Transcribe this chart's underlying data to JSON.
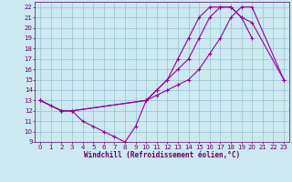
{
  "xlabel": "Windchill (Refroidissement éolien,°C)",
  "bg_color": "#cce8f0",
  "line_color": "#990099",
  "xlim": [
    -0.5,
    23.5
  ],
  "ylim": [
    9,
    22.5
  ],
  "xticks": [
    0,
    1,
    2,
    3,
    4,
    5,
    6,
    7,
    8,
    9,
    10,
    11,
    12,
    13,
    14,
    15,
    16,
    17,
    18,
    19,
    20,
    21,
    22,
    23
  ],
  "yticks": [
    9,
    10,
    11,
    12,
    13,
    14,
    15,
    16,
    17,
    18,
    19,
    20,
    21,
    22
  ],
  "grid_color": "#88bbcc",
  "curve1": {
    "x": [
      0,
      1,
      2,
      3,
      4,
      5,
      6,
      7,
      8,
      9,
      10,
      11,
      12,
      13,
      14,
      15,
      16,
      17,
      18,
      19,
      20
    ],
    "y": [
      13,
      12.5,
      12,
      12,
      11,
      10.5,
      10,
      9.5,
      9,
      10.5,
      13,
      14,
      15,
      17,
      19,
      21,
      22,
      22,
      22,
      21,
      19
    ]
  },
  "curve2": {
    "x": [
      0,
      2,
      3,
      10,
      11,
      12,
      13,
      14,
      15,
      16,
      17,
      18,
      19,
      20,
      23
    ],
    "y": [
      13,
      12,
      12,
      13,
      13.5,
      14,
      14.5,
      15,
      16,
      17.5,
      19,
      21,
      22,
      22,
      15
    ]
  },
  "curve3": {
    "x": [
      0,
      2,
      3,
      10,
      11,
      12,
      13,
      14,
      15,
      16,
      17,
      18,
      19,
      20,
      23
    ],
    "y": [
      13,
      12,
      12,
      13,
      14,
      15,
      16,
      17,
      19,
      21,
      22,
      22,
      21,
      20.5,
      15
    ]
  },
  "tick_fontsize": 5,
  "xlabel_fontsize": 5.5,
  "tick_color": "#660066",
  "spine_color": "#660066"
}
